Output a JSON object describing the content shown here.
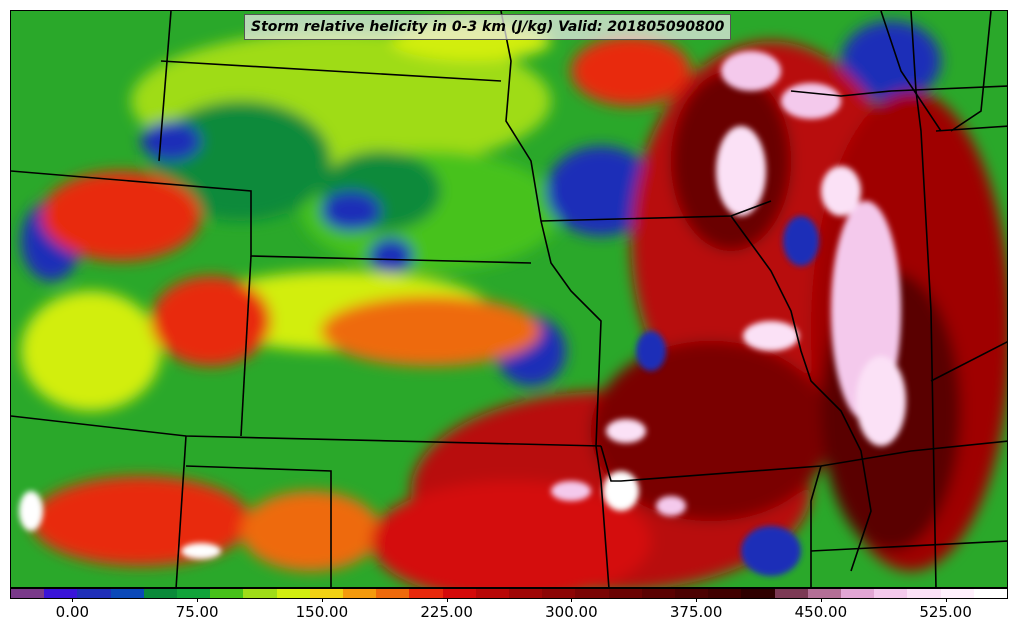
{
  "title": "Storm relative helicity in 0-3 km (J/kg) Valid: 201805090800",
  "colorbar": {
    "colors": [
      "#7a3a8a",
      "#3a14d8",
      "#1f2fb8",
      "#0b49b8",
      "#0a8a3a",
      "#11a33a",
      "#47c21a",
      "#9fdc19",
      "#d2ee11",
      "#f2d214",
      "#f49a0d",
      "#ee6a0c",
      "#e8290c",
      "#d40a0a",
      "#b80808",
      "#9f0606",
      "#8c0505",
      "#7a0404",
      "#6a0303",
      "#5a0202",
      "#4c0202",
      "#400101",
      "#2e0101",
      "#7c3a55",
      "#b36f96",
      "#e2a6d4",
      "#f4c9ec",
      "#fbe1f6",
      "#fff0fc",
      "#ffffff"
    ],
    "tick_labels": [
      "0.00",
      "75.00",
      "150.00",
      "225.00",
      "300.00",
      "375.00",
      "450.00",
      "525.00"
    ],
    "tick_values": [
      0,
      75,
      150,
      225,
      300,
      375,
      450,
      525
    ],
    "range": [
      -37.5,
      562.5
    ]
  },
  "map": {
    "background_color": "#2aa82a",
    "border_color": "#000000"
  }
}
